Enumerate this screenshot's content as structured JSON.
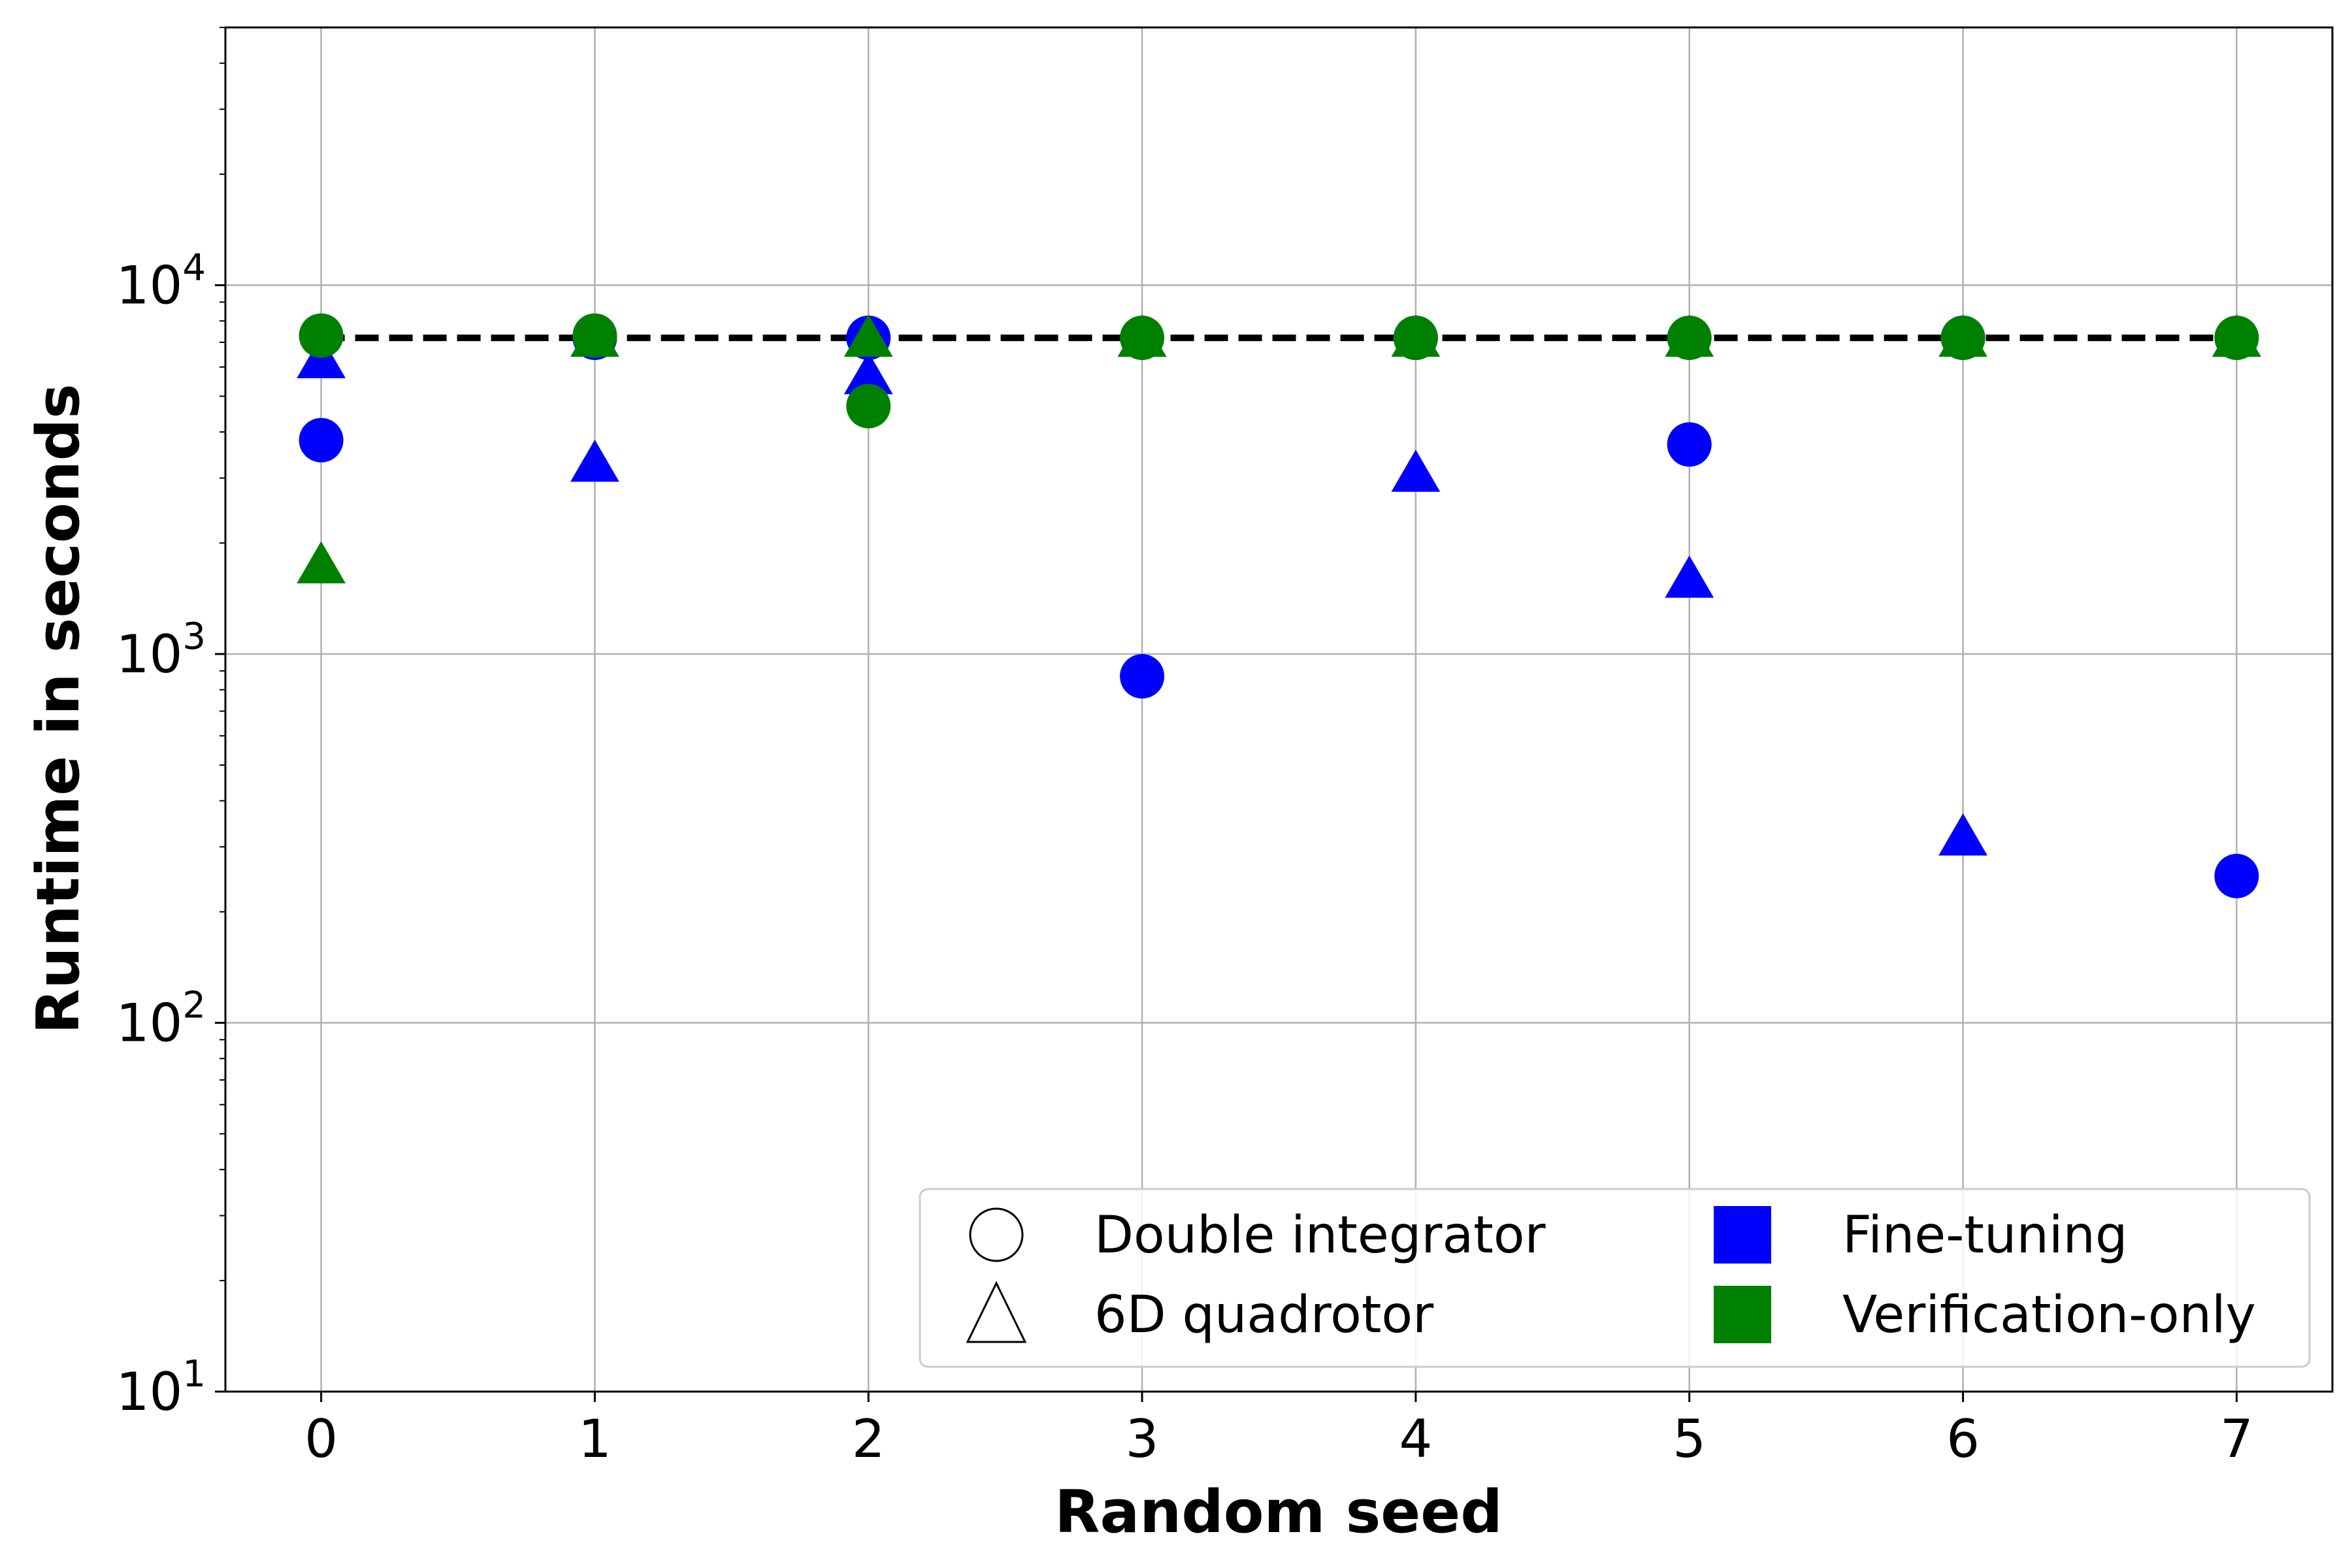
{
  "chart_data": {
    "type": "scatter",
    "xlabel": "Random seed",
    "ylabel": "Runtime in seconds",
    "yscale": "log",
    "xlim": [
      -0.35,
      7.35
    ],
    "ylim": [
      10,
      50000
    ],
    "x_ticks": [
      0,
      1,
      2,
      3,
      4,
      5,
      6,
      7
    ],
    "y_ticks": [
      {
        "value": 10,
        "base": "10",
        "exp": "1"
      },
      {
        "value": 100,
        "base": "10",
        "exp": "2"
      },
      {
        "value": 1000,
        "base": "10",
        "exp": "3"
      },
      {
        "value": 10000,
        "base": "10",
        "exp": "4"
      }
    ],
    "grid": true,
    "colors": {
      "fine_tuning": "#0000ff",
      "verification_only": "#008000",
      "reference_line": "#000000"
    },
    "reference_line": {
      "y": 7200,
      "style": "dashed"
    },
    "series": [
      {
        "system": "Double integrator",
        "method": "Fine-tuning",
        "marker": "circle",
        "color": "#0000ff",
        "x": [
          0,
          1,
          2,
          3,
          4,
          5,
          6,
          7
        ],
        "y": [
          3800,
          7200,
          7200,
          870,
          7200,
          3700,
          7200,
          250
        ]
      },
      {
        "system": "6D quadrotor",
        "method": "Fine-tuning",
        "marker": "triangle",
        "color": "#0000ff",
        "x": [
          0,
          1,
          2,
          3,
          4,
          5,
          6,
          7
        ],
        "y": [
          6300,
          3300,
          5700,
          7200,
          3100,
          1600,
          320,
          7200
        ]
      },
      {
        "system": "Double integrator",
        "method": "Verification-only",
        "marker": "circle",
        "color": "#008000",
        "x": [
          0,
          1,
          2,
          3,
          4,
          5,
          6,
          7
        ],
        "y": [
          7300,
          7300,
          4700,
          7200,
          7200,
          7200,
          7200,
          7200
        ]
      },
      {
        "system": "6D quadrotor",
        "method": "Verification-only",
        "marker": "triangle",
        "color": "#008000",
        "x": [
          0,
          1,
          2,
          3,
          4,
          5,
          6,
          7
        ],
        "y": [
          1750,
          7200,
          7200,
          7200,
          7200,
          7200,
          7200,
          7200
        ]
      }
    ],
    "legend": {
      "placement": "lower-right",
      "columns": 2,
      "entries": [
        {
          "label": "Double integrator",
          "marker": "circle-outline"
        },
        {
          "label": "Fine-tuning",
          "marker": "square",
          "color": "#0000ff"
        },
        {
          "label": "6D quadrotor",
          "marker": "triangle-outline"
        },
        {
          "label": "Verification-only",
          "marker": "square",
          "color": "#008000"
        }
      ]
    }
  }
}
